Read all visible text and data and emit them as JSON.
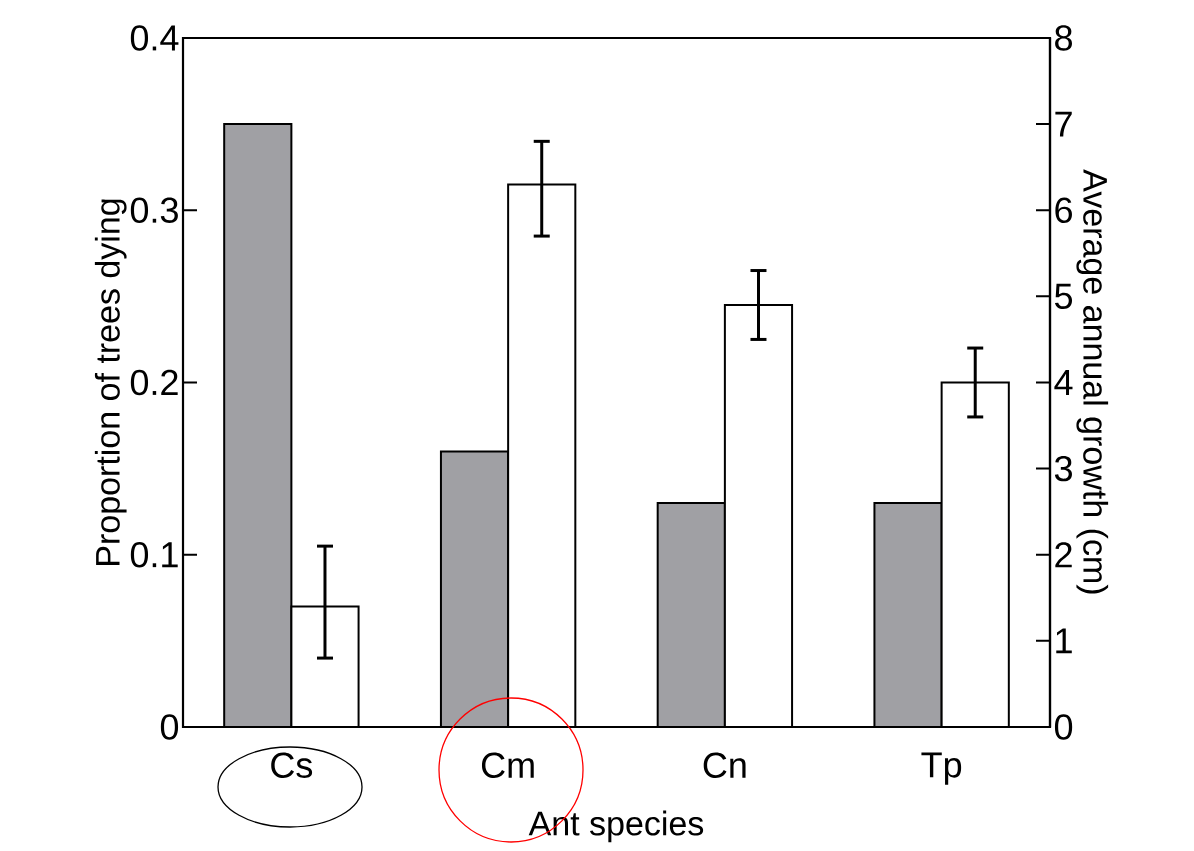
{
  "chart_data": {
    "type": "bar",
    "categories": [
      "Cs",
      "Cm",
      "Cn",
      "Tp"
    ],
    "xlabel": "Ant species",
    "ylabel": "Proportion of trees dying",
    "y2label": "Average annual growth (cm)",
    "ylim": [
      0,
      0.4
    ],
    "yticks": [
      0,
      0.1,
      0.2,
      0.3,
      0.4
    ],
    "y2lim": [
      0,
      8
    ],
    "y2ticks": [
      0,
      1,
      2,
      3,
      4,
      5,
      6,
      7,
      8
    ],
    "series": [
      {
        "color": "#a0a0a4",
        "values": [
          0.35,
          0.16,
          0.13,
          0.13
        ]
      },
      {
        "color": "#ffffff",
        "axis": "y2",
        "values": [
          1.4,
          6.3,
          4.9,
          4.0
        ],
        "errors": [
          [
            0.8,
            2.1
          ],
          [
            5.7,
            6.8
          ],
          [
            4.5,
            5.3
          ],
          [
            3.6,
            4.4
          ]
        ]
      }
    ]
  }
}
